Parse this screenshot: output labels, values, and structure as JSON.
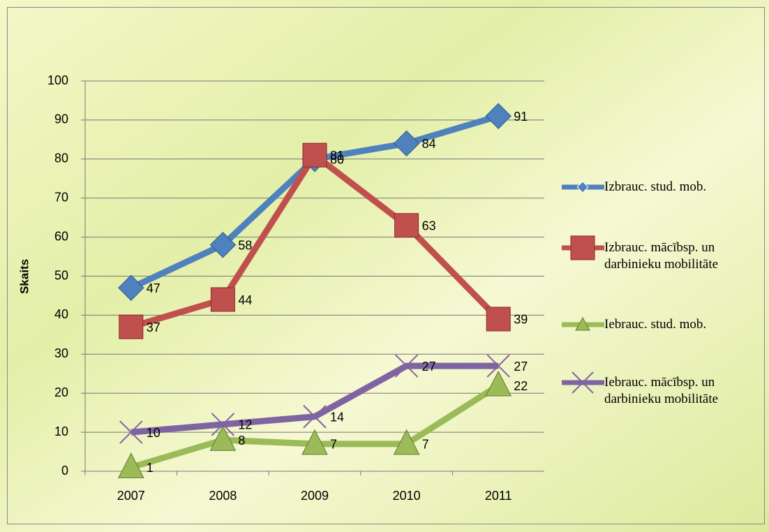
{
  "chart_data": {
    "type": "line",
    "y_label": "Skaits",
    "categories": [
      "2007",
      "2008",
      "2009",
      "2010",
      "2011"
    ],
    "series": [
      {
        "name": "Izbrauc. stud. mob.",
        "color": "#4f81bd",
        "marker": "diamond",
        "values": [
          47,
          58,
          80,
          84,
          91
        ]
      },
      {
        "name": "Izbrauc. mācībsp. un darbinieku mobilitāte",
        "color": "#c0504d",
        "marker": "square",
        "values": [
          37,
          44,
          81,
          63,
          39
        ]
      },
      {
        "name": "Iebrauc. stud. mob.",
        "color": "#9bbb59",
        "marker": "triangle",
        "values": [
          1,
          8,
          7,
          7,
          22
        ]
      },
      {
        "name": "Iebrauc. mācībsp. un darbinieku mobilitāte",
        "color": "#8064a2",
        "marker": "x",
        "values": [
          10,
          12,
          14,
          27,
          27
        ]
      }
    ],
    "ylim": [
      0,
      100
    ],
    "yticks": [
      0,
      10,
      20,
      30,
      40,
      50,
      60,
      70,
      80,
      90,
      100
    ],
    "grid": true,
    "legend": "right"
  }
}
